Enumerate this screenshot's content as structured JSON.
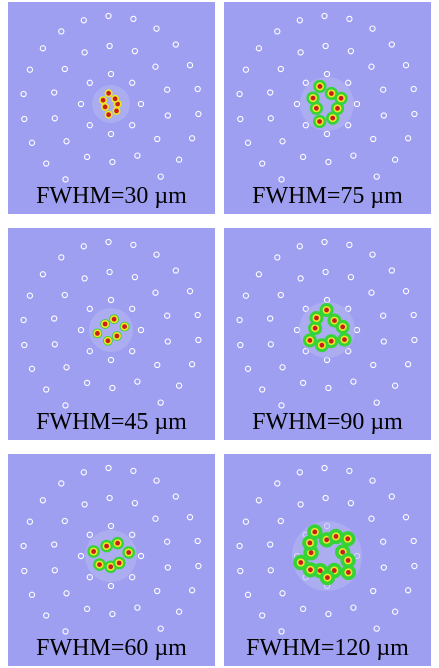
{
  "panels": [
    {
      "caption": "FWHM=30 µm"
    },
    {
      "caption": "FWHM=75 µm"
    },
    {
      "caption": "FWHM=45 µm"
    },
    {
      "caption": "FWHM=90 µm"
    },
    {
      "caption": "FWHM=60 µm"
    },
    {
      "caption": "FWHM=120 µm"
    }
  ],
  "colors": {
    "background": "#9f9ff2",
    "ring_marks": "#ffffff",
    "field_low": "#35d335",
    "field_mid": "#f2e62a",
    "field_high": "#c81e1e"
  }
}
